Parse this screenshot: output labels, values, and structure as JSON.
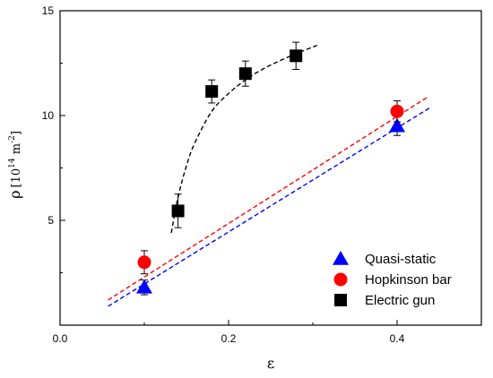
{
  "chart_data": {
    "type": "scatter",
    "xlabel": "ε",
    "ylabel": {
      "symbol": "ρ",
      "open": "[10",
      "exp1": "14",
      "unit": " m",
      "exp2": "-2",
      "close": "]"
    },
    "xlim": [
      0,
      0.5
    ],
    "ylim": [
      0,
      15
    ],
    "xticks": [
      {
        "value": 0.0,
        "label": "0.0"
      },
      {
        "value": 0.2,
        "label": "0.2"
      },
      {
        "value": 0.4,
        "label": "0.4"
      }
    ],
    "yticks": [
      {
        "value": 5,
        "label": "5"
      },
      {
        "value": 10,
        "label": "10"
      },
      {
        "value": 15,
        "label": "15"
      }
    ],
    "grid": false,
    "legend_position": "bottom-right",
    "series": [
      {
        "name": "Quasi-static",
        "marker": "triangle",
        "color": "#0000ff",
        "points": [
          {
            "x": 0.1,
            "y": 1.8,
            "err": 0.35
          },
          {
            "x": 0.4,
            "y": 9.5,
            "err": 0.45
          }
        ],
        "fit": {
          "style": "linear",
          "color": "#0000ff",
          "from": [
            0.057,
            0.9
          ],
          "to": [
            0.44,
            10.4
          ]
        }
      },
      {
        "name": "Hopkinson bar",
        "marker": "circle",
        "color": "#ff0000",
        "points": [
          {
            "x": 0.1,
            "y": 3.0,
            "err": 0.55
          },
          {
            "x": 0.4,
            "y": 10.2,
            "err": 0.5
          }
        ],
        "fit": {
          "style": "linear",
          "color": "#ff0000",
          "from": [
            0.057,
            1.2
          ],
          "to": [
            0.435,
            10.85
          ]
        }
      },
      {
        "name": "Electric gun",
        "marker": "square",
        "color": "#000000",
        "points": [
          {
            "x": 0.14,
            "y": 5.45,
            "err": 0.8
          },
          {
            "x": 0.18,
            "y": 11.15,
            "err": 0.55
          },
          {
            "x": 0.22,
            "y": 12.0,
            "err": 0.6
          },
          {
            "x": 0.28,
            "y": 12.85,
            "err": 0.65
          }
        ],
        "fit": {
          "style": "curve",
          "color": "#000000",
          "points": [
            [
              0.132,
              4.4
            ],
            [
              0.14,
              6.1
            ],
            [
              0.15,
              7.6
            ],
            [
              0.16,
              8.7
            ],
            [
              0.18,
              10.2
            ],
            [
              0.2,
              11.05
            ],
            [
              0.22,
              11.7
            ],
            [
              0.24,
              12.2
            ],
            [
              0.26,
              12.6
            ],
            [
              0.28,
              12.95
            ],
            [
              0.305,
              13.35
            ]
          ]
        }
      }
    ]
  }
}
